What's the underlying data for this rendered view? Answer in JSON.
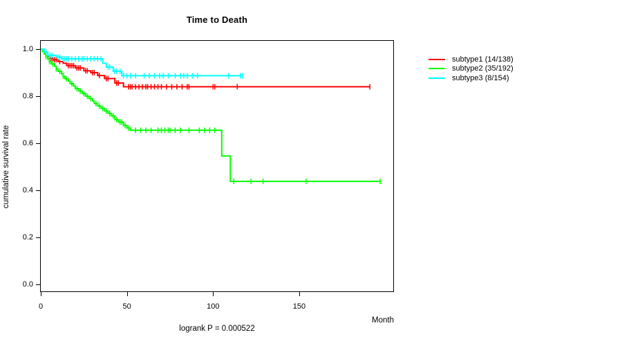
{
  "chart_data": {
    "type": "line",
    "subtype": "kaplan-meier-step-survival",
    "title": "Time to Death",
    "xlabel": "Month",
    "ylabel": "cumulative survival rate",
    "annotation": "logrank P = 0.000522",
    "xlim": [
      0,
      205
    ],
    "ylim": [
      0.0,
      1.0
    ],
    "grid": false,
    "legend_position": "right-outside",
    "x_ticks": [
      {
        "value": 0,
        "label": "0"
      },
      {
        "value": 50,
        "label": "50"
      },
      {
        "value": 100,
        "label": "100"
      },
      {
        "value": 150,
        "label": "150"
      }
    ],
    "y_ticks": [
      {
        "value": 1.0,
        "label": "1.0"
      },
      {
        "value": 0.8,
        "label": "0.8"
      },
      {
        "value": 0.6,
        "label": "0.6"
      },
      {
        "value": 0.4,
        "label": "0.4"
      },
      {
        "value": 0.2,
        "label": "0.2"
      },
      {
        "value": 0.0,
        "label": "0.0"
      }
    ],
    "series": [
      {
        "name": "subtype1",
        "label": "subtype1 (14/138)",
        "deaths": 14,
        "n": 138,
        "color": "#ff0000",
        "final_survival": 0.84,
        "last_month": 191,
        "points": [
          [
            0,
            1.0
          ],
          [
            1,
            0.99
          ],
          [
            2,
            0.98
          ],
          [
            3,
            0.97
          ],
          [
            5,
            0.962
          ],
          [
            7,
            0.955
          ],
          [
            10,
            0.947
          ],
          [
            13,
            0.94
          ],
          [
            15,
            0.93
          ],
          [
            20,
            0.92
          ],
          [
            25,
            0.908
          ],
          [
            29,
            0.9
          ],
          [
            33,
            0.888
          ],
          [
            37,
            0.875
          ],
          [
            43,
            0.856
          ],
          [
            48,
            0.84
          ],
          [
            191,
            0.84
          ]
        ],
        "censor_marks": [
          [
            6,
            0.955
          ],
          [
            7,
            0.955
          ],
          [
            8,
            0.955
          ],
          [
            9,
            0.955
          ],
          [
            11,
            0.947
          ],
          [
            16,
            0.93
          ],
          [
            17,
            0.93
          ],
          [
            18,
            0.93
          ],
          [
            19,
            0.93
          ],
          [
            21,
            0.92
          ],
          [
            22,
            0.92
          ],
          [
            23,
            0.92
          ],
          [
            26,
            0.908
          ],
          [
            27,
            0.908
          ],
          [
            30,
            0.9
          ],
          [
            31,
            0.9
          ],
          [
            34,
            0.888
          ],
          [
            38,
            0.875
          ],
          [
            39,
            0.875
          ],
          [
            44,
            0.856
          ],
          [
            45,
            0.856
          ],
          [
            51,
            0.84
          ],
          [
            52,
            0.84
          ],
          [
            53,
            0.84
          ],
          [
            55,
            0.84
          ],
          [
            57,
            0.84
          ],
          [
            59,
            0.84
          ],
          [
            61,
            0.84
          ],
          [
            62,
            0.84
          ],
          [
            64,
            0.84
          ],
          [
            66,
            0.84
          ],
          [
            68,
            0.84
          ],
          [
            70,
            0.84
          ],
          [
            73,
            0.84
          ],
          [
            76,
            0.84
          ],
          [
            79,
            0.84
          ],
          [
            82,
            0.84
          ],
          [
            85,
            0.84
          ],
          [
            86,
            0.84
          ],
          [
            100,
            0.84
          ],
          [
            101,
            0.84
          ],
          [
            114,
            0.84
          ],
          [
            191,
            0.84
          ]
        ]
      },
      {
        "name": "subtype2",
        "label": "subtype2 (35/192)",
        "deaths": 35,
        "n": 192,
        "color": "#00ff00",
        "final_survival": 0.438,
        "last_month": 197,
        "points": [
          [
            0,
            1.0
          ],
          [
            1,
            0.99
          ],
          [
            2,
            0.979
          ],
          [
            3,
            0.969
          ],
          [
            4,
            0.958
          ],
          [
            5,
            0.948
          ],
          [
            6,
            0.937
          ],
          [
            8,
            0.927
          ],
          [
            9,
            0.916
          ],
          [
            10,
            0.906
          ],
          [
            12,
            0.895
          ],
          [
            13,
            0.885
          ],
          [
            14,
            0.874
          ],
          [
            16,
            0.864
          ],
          [
            17,
            0.853
          ],
          [
            19,
            0.843
          ],
          [
            20,
            0.832
          ],
          [
            22,
            0.822
          ],
          [
            24,
            0.811
          ],
          [
            26,
            0.8
          ],
          [
            28,
            0.79
          ],
          [
            30,
            0.779
          ],
          [
            31,
            0.769
          ],
          [
            33,
            0.758
          ],
          [
            35,
            0.748
          ],
          [
            37,
            0.737
          ],
          [
            39,
            0.727
          ],
          [
            41,
            0.716
          ],
          [
            43,
            0.7
          ],
          [
            45,
            0.69
          ],
          [
            48,
            0.675
          ],
          [
            50,
            0.665
          ],
          [
            52,
            0.655
          ],
          [
            105,
            0.546
          ],
          [
            110,
            0.438
          ],
          [
            197,
            0.438
          ]
        ],
        "censor_marks": [
          [
            3,
            0.969
          ],
          [
            5,
            0.948
          ],
          [
            7,
            0.937
          ],
          [
            9,
            0.916
          ],
          [
            11,
            0.906
          ],
          [
            13,
            0.885
          ],
          [
            15,
            0.874
          ],
          [
            18,
            0.853
          ],
          [
            21,
            0.832
          ],
          [
            23,
            0.822
          ],
          [
            25,
            0.811
          ],
          [
            27,
            0.8
          ],
          [
            29,
            0.79
          ],
          [
            32,
            0.769
          ],
          [
            34,
            0.758
          ],
          [
            36,
            0.748
          ],
          [
            38,
            0.737
          ],
          [
            40,
            0.727
          ],
          [
            42,
            0.716
          ],
          [
            44,
            0.7
          ],
          [
            46,
            0.69
          ],
          [
            47,
            0.69
          ],
          [
            49,
            0.675
          ],
          [
            51,
            0.665
          ],
          [
            55,
            0.655
          ],
          [
            58,
            0.655
          ],
          [
            61,
            0.655
          ],
          [
            64,
            0.655
          ],
          [
            68,
            0.655
          ],
          [
            70,
            0.655
          ],
          [
            72,
            0.655
          ],
          [
            74,
            0.655
          ],
          [
            75,
            0.655
          ],
          [
            78,
            0.655
          ],
          [
            81,
            0.655
          ],
          [
            86,
            0.655
          ],
          [
            92,
            0.655
          ],
          [
            95,
            0.655
          ],
          [
            98,
            0.655
          ],
          [
            101,
            0.655
          ],
          [
            112,
            0.438
          ],
          [
            122,
            0.438
          ],
          [
            129,
            0.438
          ],
          [
            154,
            0.438
          ],
          [
            197,
            0.438
          ]
        ]
      },
      {
        "name": "subtype3",
        "label": "subtype3 (8/154)",
        "deaths": 8,
        "n": 154,
        "color": "#00ffff",
        "final_survival": 0.887,
        "last_month": 117,
        "points": [
          [
            0,
            1.0
          ],
          [
            2,
            0.987
          ],
          [
            4,
            0.973
          ],
          [
            9,
            0.966
          ],
          [
            12,
            0.959
          ],
          [
            36,
            0.94
          ],
          [
            38,
            0.924
          ],
          [
            42,
            0.906
          ],
          [
            47,
            0.887
          ],
          [
            117,
            0.887
          ]
        ],
        "censor_marks": [
          [
            3,
            0.987
          ],
          [
            5,
            0.973
          ],
          [
            6,
            0.973
          ],
          [
            7,
            0.973
          ],
          [
            10,
            0.966
          ],
          [
            11,
            0.966
          ],
          [
            13,
            0.959
          ],
          [
            14,
            0.959
          ],
          [
            15,
            0.959
          ],
          [
            16,
            0.959
          ],
          [
            18,
            0.959
          ],
          [
            20,
            0.959
          ],
          [
            22,
            0.959
          ],
          [
            24,
            0.959
          ],
          [
            25,
            0.959
          ],
          [
            27,
            0.959
          ],
          [
            29,
            0.959
          ],
          [
            31,
            0.959
          ],
          [
            33,
            0.959
          ],
          [
            35,
            0.959
          ],
          [
            39,
            0.924
          ],
          [
            40,
            0.924
          ],
          [
            43,
            0.906
          ],
          [
            44,
            0.906
          ],
          [
            46,
            0.906
          ],
          [
            48,
            0.887
          ],
          [
            50,
            0.887
          ],
          [
            52,
            0.887
          ],
          [
            55,
            0.887
          ],
          [
            60,
            0.887
          ],
          [
            63,
            0.887
          ],
          [
            66,
            0.887
          ],
          [
            69,
            0.887
          ],
          [
            71,
            0.887
          ],
          [
            74,
            0.887
          ],
          [
            78,
            0.887
          ],
          [
            81,
            0.887
          ],
          [
            83,
            0.887
          ],
          [
            85,
            0.887
          ],
          [
            88,
            0.887
          ],
          [
            91,
            0.887
          ],
          [
            109,
            0.887
          ],
          [
            116,
            0.887
          ],
          [
            117,
            0.887
          ]
        ]
      }
    ]
  }
}
